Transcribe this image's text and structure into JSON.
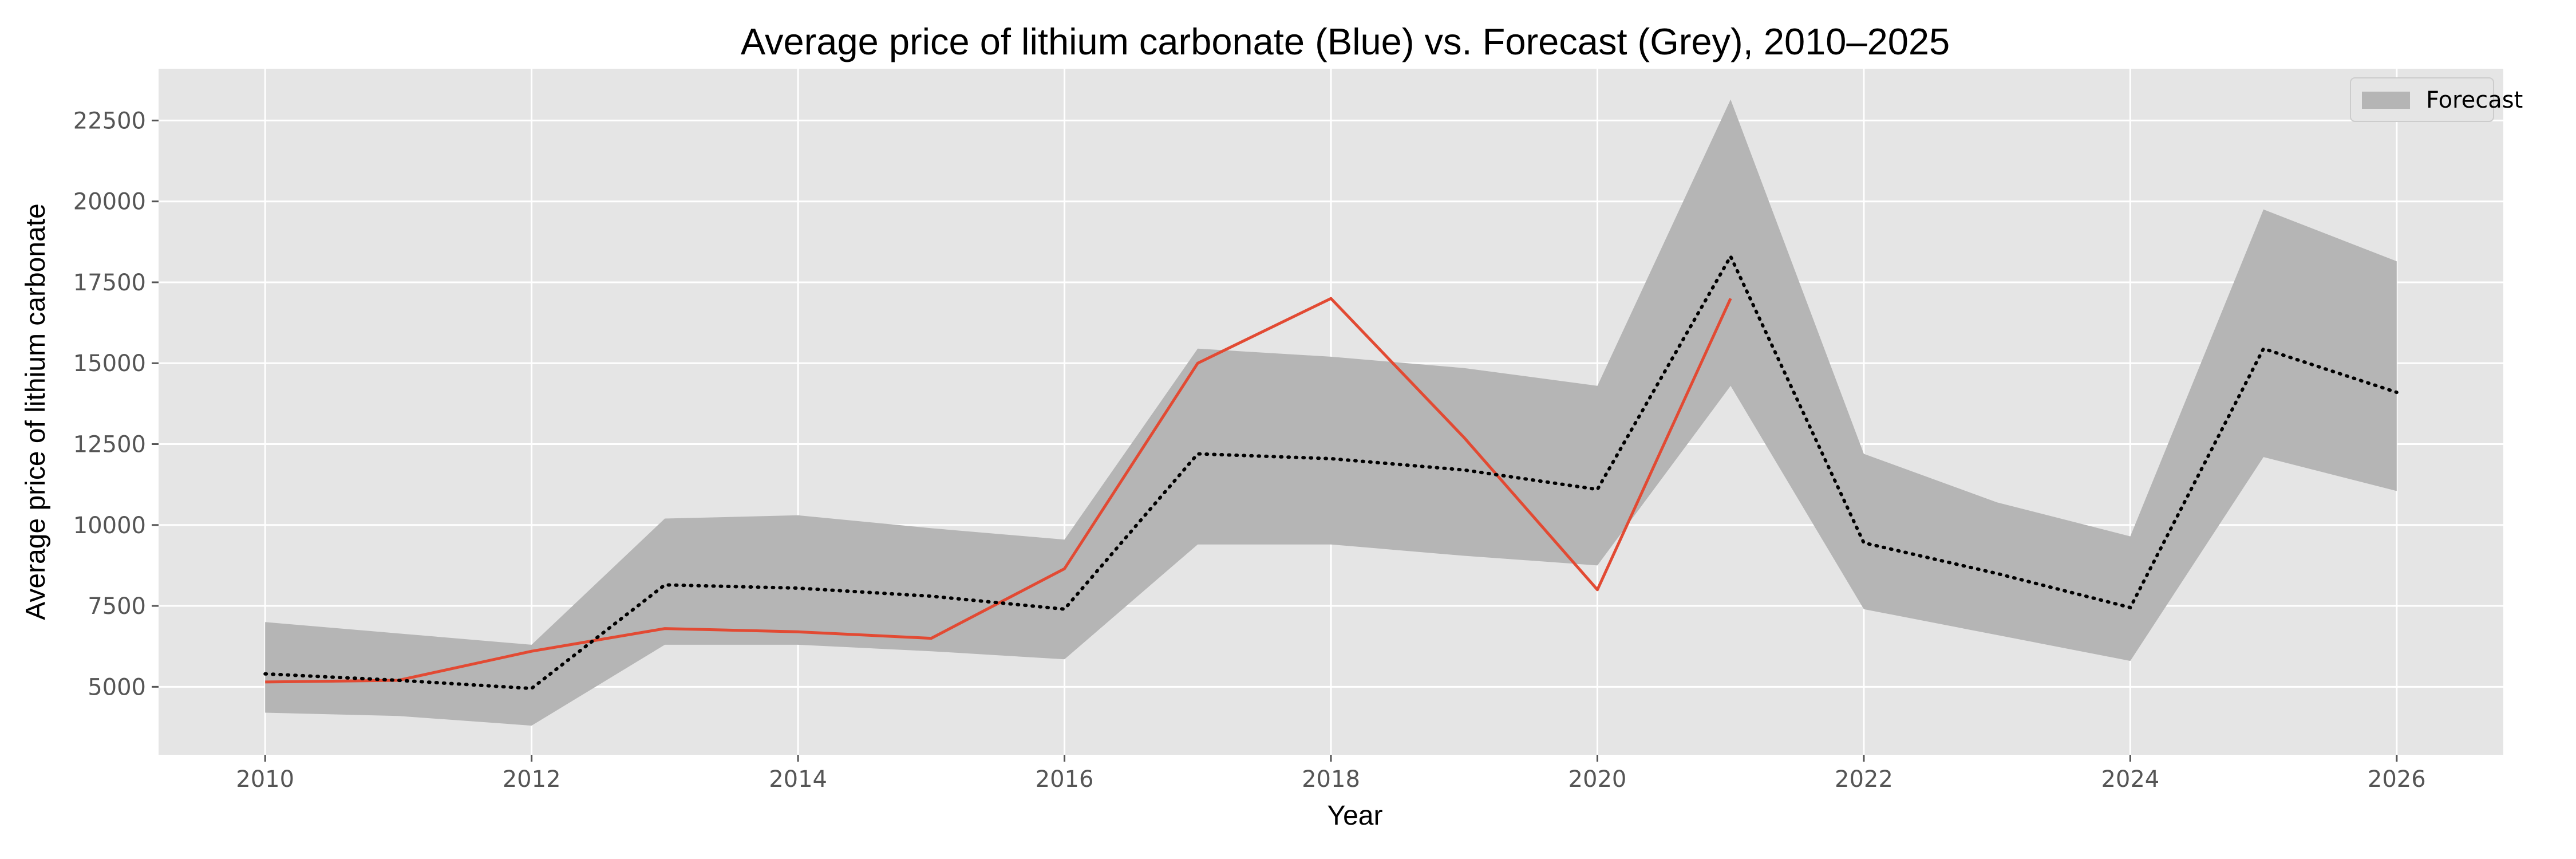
{
  "chart_data": {
    "type": "line",
    "title": "Average price of lithium carbonate (Blue) vs. Forecast (Grey), 2010–2025",
    "xlabel": "Year",
    "ylabel": "Average price of lithium carbonate",
    "xlim": [
      2009.2,
      2026.8
    ],
    "ylim": [
      2900,
      24100
    ],
    "x_ticks": [
      2010,
      2012,
      2014,
      2016,
      2018,
      2020,
      2022,
      2024,
      2026
    ],
    "y_ticks": [
      5000,
      7500,
      10000,
      12500,
      15000,
      17500,
      20000,
      22500
    ],
    "grid": true,
    "legend": {
      "placement": "top-right",
      "entries": [
        "Forecast"
      ]
    },
    "colors": {
      "actual": "#e24a33",
      "forecast_line": "#000000",
      "forecast_band": "#b5b5b5",
      "plot_background": "#e5e5e5",
      "grid": "#ffffff"
    },
    "series": [
      {
        "key": "actual",
        "style": "solid",
        "x": [
          2010,
          2011,
          2012,
          2013,
          2014,
          2015,
          2016,
          2017,
          2018,
          2019,
          2020,
          2021
        ],
        "y": [
          5150,
          5200,
          6100,
          6800,
          6700,
          6500,
          8650,
          15000,
          17000,
          12700,
          8000,
          17000
        ]
      },
      {
        "key": "forecast",
        "style": "dotted",
        "x": [
          2010,
          2011,
          2012,
          2013,
          2014,
          2015,
          2016,
          2017,
          2018,
          2019,
          2020,
          2021,
          2022,
          2023,
          2024,
          2025,
          2026
        ],
        "y": [
          5400,
          5200,
          4950,
          8150,
          8050,
          7800,
          7400,
          12200,
          12050,
          11700,
          11100,
          18300,
          9450,
          8500,
          7450,
          15450,
          14100
        ]
      }
    ],
    "band": {
      "name": "Forecast",
      "x": [
        2010,
        2011,
        2012,
        2013,
        2014,
        2015,
        2016,
        2017,
        2018,
        2019,
        2020,
        2021,
        2022,
        2023,
        2024,
        2025,
        2026
      ],
      "lower": [
        4200,
        4100,
        3800,
        6300,
        6300,
        6100,
        5850,
        9400,
        9400,
        9050,
        8750,
        14300,
        7400,
        6600,
        5800,
        12100,
        11050
      ],
      "upper": [
        7000,
        6650,
        6300,
        10200,
        10300,
        9900,
        9550,
        15450,
        15200,
        14850,
        14300,
        23150,
        12200,
        10700,
        9650,
        19750,
        18150
      ]
    }
  }
}
